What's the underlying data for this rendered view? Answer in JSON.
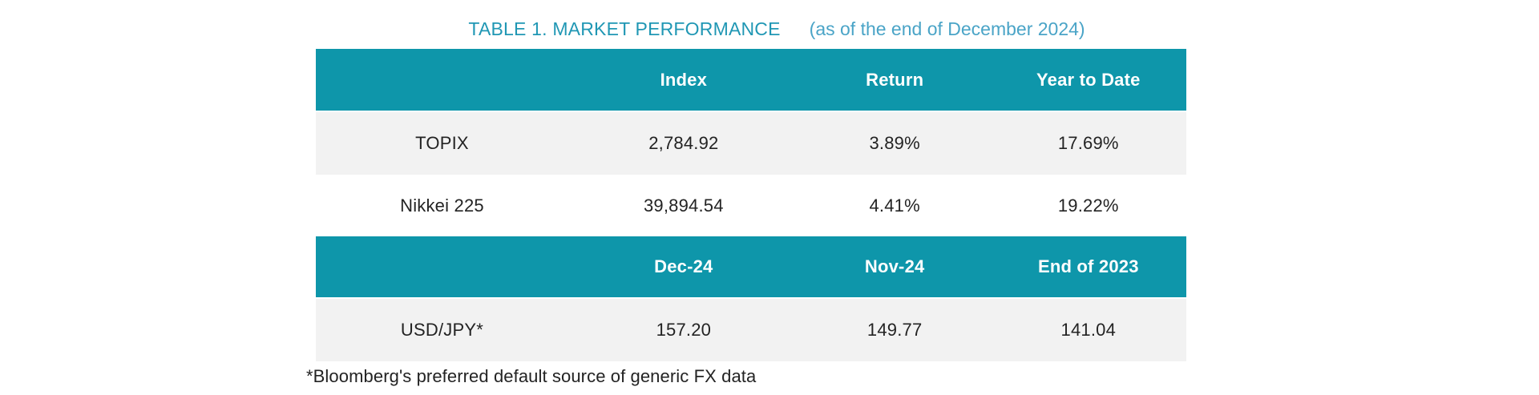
{
  "title": {
    "main": "TABLE 1. MARKET PERFORMANCE",
    "sub": "(as of the end of December 2024)"
  },
  "colors": {
    "header_bg": "#0e96aa",
    "alt_row_bg": "#f2f2f2",
    "title_main": "#2097b4",
    "title_sub": "#4aa4c7",
    "header_text": "#ffffff",
    "body_text": "#232323"
  },
  "table1": {
    "headers": [
      "",
      "Index",
      "Return",
      "Year to Date"
    ],
    "rows": [
      {
        "label": "TOPIX",
        "index": "2,784.92",
        "return": "3.89%",
        "ytd": "17.69%"
      },
      {
        "label": "Nikkei 225",
        "index": "39,894.54",
        "return": "4.41%",
        "ytd": "19.22%"
      }
    ]
  },
  "table2": {
    "headers": [
      "",
      "Dec-24",
      "Nov-24",
      "End of 2023"
    ],
    "rows": [
      {
        "label": "USD/JPY*",
        "dec24": "157.20",
        "nov24": "149.77",
        "end2023": "141.04"
      }
    ]
  },
  "footnote": "*Bloomberg's preferred default source of generic FX data"
}
